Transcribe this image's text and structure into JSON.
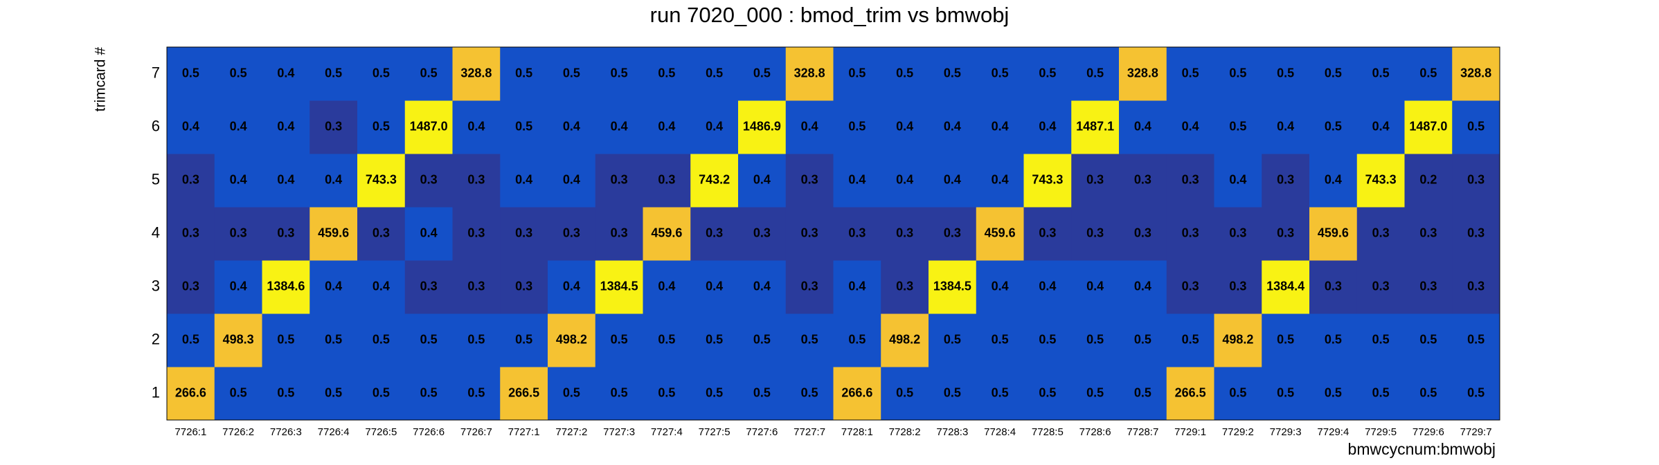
{
  "chart_data": {
    "type": "heatmap",
    "title": "run 7020_000 : bmod_trim vs bmwobj",
    "x_label": "bmwcycnum:bmwobj",
    "y_label": "trimcard #",
    "categories": [
      "7726:1",
      "7726:2",
      "7726:3",
      "7726:4",
      "7726:5",
      "7726:6",
      "7726:7",
      "7727:1",
      "7727:2",
      "7727:3",
      "7727:4",
      "7727:5",
      "7727:6",
      "7727:7",
      "7728:1",
      "7728:2",
      "7728:3",
      "7728:4",
      "7728:5",
      "7728:6",
      "7728:7",
      "7729:1",
      "7729:2",
      "7729:3",
      "7729:4",
      "7729:5",
      "7729:6",
      "7729:7"
    ],
    "y_categories": [
      1,
      2,
      3,
      4,
      5,
      6,
      7
    ],
    "log_color": true,
    "palette": [
      "#2a3b9c",
      "#1450c8",
      "#1450c8",
      "#1450c8",
      "#1450c8",
      "#1450c8",
      "#1450c8",
      "#1450c8",
      "#1450c8",
      "#1450c8",
      "#1450c8",
      "#1450c8",
      "#1450c8",
      "#1450c8",
      "#1450c8",
      "#1450c8",
      "#f5c232",
      "#f5c232",
      "#f8f214",
      "#f8f214"
    ],
    "values": [
      [
        266.6,
        0.5,
        0.5,
        0.5,
        0.5,
        0.5,
        0.5,
        266.5,
        0.5,
        0.5,
        0.5,
        0.5,
        0.5,
        0.5,
        266.6,
        0.5,
        0.5,
        0.5,
        0.5,
        0.5,
        0.5,
        266.5,
        0.5,
        0.5,
        0.5,
        0.5,
        0.5,
        0.5
      ],
      [
        0.5,
        498.3,
        0.5,
        0.5,
        0.5,
        0.5,
        0.5,
        0.5,
        498.2,
        0.5,
        0.5,
        0.5,
        0.5,
        0.5,
        0.5,
        498.2,
        0.5,
        0.5,
        0.5,
        0.5,
        0.5,
        0.5,
        498.2,
        0.5,
        0.5,
        0.5,
        0.5,
        0.5
      ],
      [
        0.3,
        0.4,
        1384.6,
        0.4,
        0.4,
        0.3,
        0.3,
        0.3,
        0.4,
        1384.5,
        0.4,
        0.4,
        0.4,
        0.3,
        0.4,
        0.3,
        1384.5,
        0.4,
        0.4,
        0.4,
        0.4,
        0.3,
        0.3,
        1384.4,
        0.3,
        0.3,
        0.3,
        0.3
      ],
      [
        0.3,
        0.3,
        0.3,
        459.6,
        0.3,
        0.4,
        0.3,
        0.3,
        0.3,
        0.3,
        459.6,
        0.3,
        0.3,
        0.3,
        0.3,
        0.3,
        0.3,
        459.6,
        0.3,
        0.3,
        0.3,
        0.3,
        0.3,
        0.3,
        459.6,
        0.3,
        0.3,
        0.3
      ],
      [
        0.3,
        0.4,
        0.4,
        0.4,
        743.3,
        0.3,
        0.3,
        0.4,
        0.4,
        0.3,
        0.3,
        743.2,
        0.4,
        0.3,
        0.4,
        0.4,
        0.4,
        0.4,
        743.3,
        0.3,
        0.3,
        0.3,
        0.4,
        0.3,
        0.4,
        743.3,
        0.2,
        0.3
      ],
      [
        0.4,
        0.4,
        0.4,
        0.3,
        0.5,
        1487,
        0.4,
        0.5,
        0.4,
        0.4,
        0.4,
        0.4,
        1486.9,
        0.4,
        0.5,
        0.4,
        0.4,
        0.4,
        0.4,
        1487.1,
        0.4,
        0.4,
        0.5,
        0.4,
        0.5,
        0.4,
        1487,
        0.5
      ],
      [
        0.5,
        0.5,
        0.4,
        0.5,
        0.5,
        0.5,
        328.8,
        0.5,
        0.5,
        0.5,
        0.5,
        0.5,
        0.5,
        328.8,
        0.5,
        0.5,
        0.5,
        0.5,
        0.5,
        0.5,
        328.8,
        0.5,
        0.5,
        0.5,
        0.5,
        0.5,
        0.5,
        328.8
      ]
    ],
    "value_labels": [
      [
        "266.6",
        "0.5",
        "0.5",
        "0.5",
        "0.5",
        "0.5",
        "0.5",
        "266.5",
        "0.5",
        "0.5",
        "0.5",
        "0.5",
        "0.5",
        "0.5",
        "266.6",
        "0.5",
        "0.5",
        "0.5",
        "0.5",
        "0.5",
        "0.5",
        "266.5",
        "0.5",
        "0.5",
        "0.5",
        "0.5",
        "0.5",
        "0.5"
      ],
      [
        "0.5",
        "498.3",
        "0.5",
        "0.5",
        "0.5",
        "0.5",
        "0.5",
        "0.5",
        "498.2",
        "0.5",
        "0.5",
        "0.5",
        "0.5",
        "0.5",
        "0.5",
        "498.2",
        "0.5",
        "0.5",
        "0.5",
        "0.5",
        "0.5",
        "0.5",
        "498.2",
        "0.5",
        "0.5",
        "0.5",
        "0.5",
        "0.5"
      ],
      [
        "0.3",
        "0.4",
        "1384.6",
        "0.4",
        "0.4",
        "0.3",
        "0.3",
        "0.3",
        "0.4",
        "1384.5",
        "0.4",
        "0.4",
        "0.4",
        "0.3",
        "0.4",
        "0.3",
        "1384.5",
        "0.4",
        "0.4",
        "0.4",
        "0.4",
        "0.3",
        "0.3",
        "1384.4",
        "0.3",
        "0.3",
        "0.3",
        "0.3"
      ],
      [
        "0.3",
        "0.3",
        "0.3",
        "459.6",
        "0.3",
        "0.4",
        "0.3",
        "0.3",
        "0.3",
        "0.3",
        "459.6",
        "0.3",
        "0.3",
        "0.3",
        "0.3",
        "0.3",
        "0.3",
        "459.6",
        "0.3",
        "0.3",
        "0.3",
        "0.3",
        "0.3",
        "0.3",
        "459.6",
        "0.3",
        "0.3",
        "0.3"
      ],
      [
        "0.3",
        "0.4",
        "0.4",
        "0.4",
        "743.3",
        "0.3",
        "0.3",
        "0.4",
        "0.4",
        "0.3",
        "0.3",
        "743.2",
        "0.4",
        "0.3",
        "0.4",
        "0.4",
        "0.4",
        "0.4",
        "743.3",
        "0.3",
        "0.3",
        "0.3",
        "0.4",
        "0.3",
        "0.4",
        "743.3",
        "0.2",
        "0.3"
      ],
      [
        "0.4",
        "0.4",
        "0.4",
        "0.3",
        "0.5",
        "1487.0",
        "0.4",
        "0.5",
        "0.4",
        "0.4",
        "0.4",
        "0.4",
        "1486.9",
        "0.4",
        "0.5",
        "0.4",
        "0.4",
        "0.4",
        "0.4",
        "1487.1",
        "0.4",
        "0.4",
        "0.5",
        "0.4",
        "0.5",
        "0.4",
        "1487.0",
        "0.5"
      ],
      [
        "0.5",
        "0.5",
        "0.4",
        "0.5",
        "0.5",
        "0.5",
        "328.8",
        "0.5",
        "0.5",
        "0.5",
        "0.5",
        "0.5",
        "0.5",
        "328.8",
        "0.5",
        "0.5",
        "0.5",
        "0.5",
        "0.5",
        "0.5",
        "328.8",
        "0.5",
        "0.5",
        "0.5",
        "0.5",
        "0.5",
        "0.5",
        "328.8"
      ]
    ]
  }
}
